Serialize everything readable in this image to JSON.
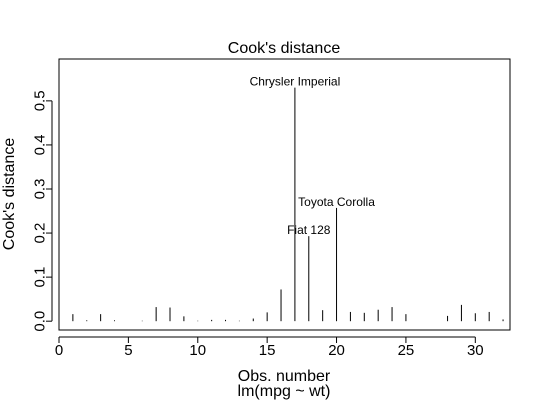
{
  "chart_data": {
    "type": "bar",
    "title": "Cook's distance",
    "xlabel": "Obs. number",
    "ylabel": "Cook's distance",
    "subtitle": "lm(mpg ~ wt)",
    "xlim": [
      0,
      32.5
    ],
    "ylim": [
      -0.02,
      0.595
    ],
    "x_ticks": [
      0,
      5,
      10,
      15,
      20,
      25,
      30
    ],
    "y_ticks": [
      0.0,
      0.1,
      0.2,
      0.3,
      0.4,
      0.5
    ],
    "y_tick_labels": [
      "0.0",
      "0.1",
      "0.2",
      "0.3",
      "0.4",
      "0.5"
    ],
    "grid": false,
    "x": [
      1,
      2,
      3,
      4,
      5,
      6,
      7,
      8,
      9,
      10,
      11,
      12,
      13,
      14,
      15,
      16,
      17,
      18,
      19,
      20,
      21,
      22,
      23,
      24,
      25,
      26,
      27,
      28,
      29,
      30,
      31,
      32
    ],
    "values": [
      0.016,
      0.002,
      0.016,
      0.002,
      0.0,
      0.001,
      0.032,
      0.031,
      0.011,
      0.001,
      0.003,
      0.003,
      0.001,
      0.006,
      0.02,
      0.072,
      0.53,
      0.193,
      0.025,
      0.257,
      0.021,
      0.019,
      0.026,
      0.032,
      0.016,
      0.0,
      0.0,
      0.012,
      0.037,
      0.018,
      0.021,
      0.004
    ],
    "annotations": [
      {
        "x": 17,
        "label": "Chrysler Imperial"
      },
      {
        "x": 20,
        "label": "Toyota Corolla"
      },
      {
        "x": 18,
        "label": "Fiat 128"
      }
    ]
  }
}
